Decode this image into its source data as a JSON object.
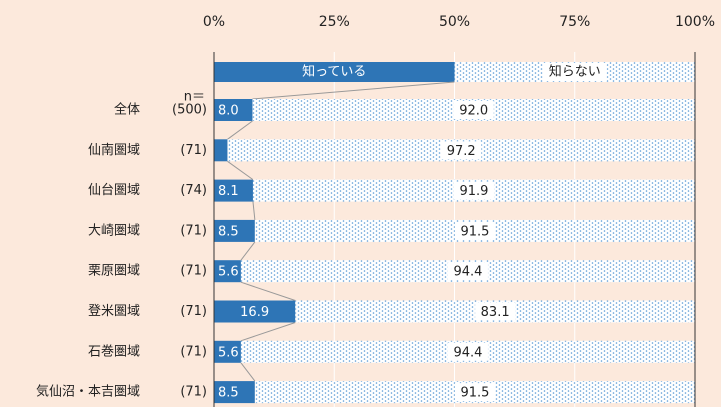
{
  "chart_data": {
    "type": "stacked-bar-horizontal",
    "n_header": "n＝",
    "categories": [
      "全体",
      "仙南圏域",
      "仙台圏域",
      "大崎圏域",
      "栗原圏域",
      "登米圏域",
      "石巻圏域",
      "気仙沼・本吉圏域"
    ],
    "n_labels": [
      "(500)",
      "(71)",
      "(74)",
      "(71)",
      "(71)",
      "(71)",
      "(71)",
      "(71)"
    ],
    "series": [
      {
        "name": "知っている",
        "color": "#2e75b6",
        "values": [
          8.0,
          2.8,
          8.1,
          8.5,
          5.6,
          16.9,
          5.6,
          8.5
        ],
        "value_labels": [
          "8.0",
          null,
          "8.1",
          "8.5",
          "5.6",
          "16.9",
          "5.6",
          "8.5"
        ]
      },
      {
        "name": "知らない",
        "color": "#5b9bd5",
        "values": [
          92.0,
          97.2,
          91.9,
          91.5,
          94.4,
          83.1,
          94.4,
          91.5
        ],
        "value_labels": [
          "92.0",
          "97.2",
          "91.9",
          "91.5",
          "94.4",
          "83.1",
          "94.4",
          "91.5"
        ]
      }
    ],
    "xlim": [
      0,
      100
    ],
    "xticks": [
      {
        "value": 0,
        "label": "0%"
      },
      {
        "value": 25,
        "label": "25%"
      },
      {
        "value": 50,
        "label": "50%"
      },
      {
        "value": 75,
        "label": "75%"
      },
      {
        "value": 100,
        "label": "100%"
      }
    ],
    "grid": true
  }
}
